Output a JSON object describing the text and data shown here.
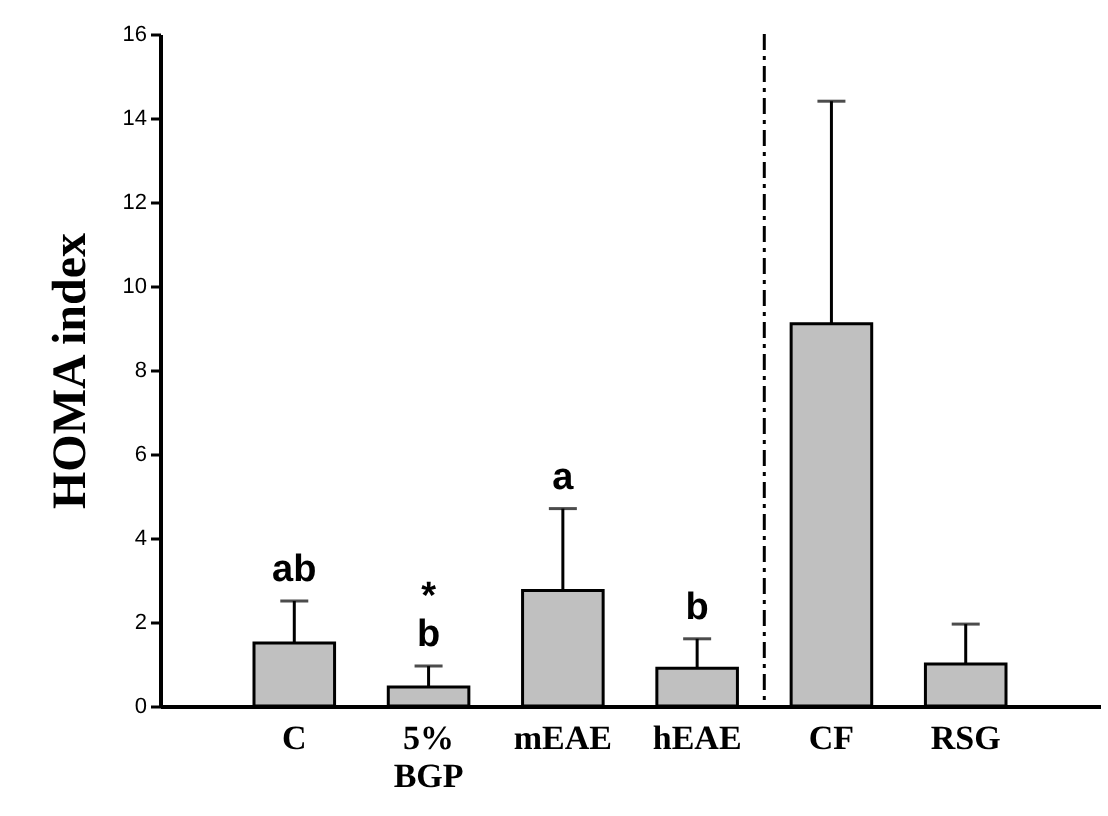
{
  "chart_data": {
    "type": "bar",
    "ylabel": "HOMA index",
    "categories": [
      "C",
      "5% BGP",
      "mEAE",
      "hEAE",
      "CF",
      "RSG"
    ],
    "values": [
      1.5,
      0.45,
      2.75,
      0.9,
      9.1,
      1.0
    ],
    "errors": [
      [
        1.5,
        2.5
      ],
      [
        0.45,
        0.95
      ],
      [
        2.75,
        4.7
      ],
      [
        0.9,
        1.6
      ],
      [
        9.1,
        14.4
      ],
      [
        1.0,
        1.95
      ]
    ],
    "color": "#c0c0c0",
    "ylim": [
      0,
      16
    ],
    "yticks": [
      0,
      2,
      4,
      6,
      8,
      10,
      12,
      14,
      16
    ],
    "grid": false,
    "annotations": [
      {
        "text": "ab",
        "x": "C",
        "y": 2.5
      },
      {
        "text": "b",
        "x": "5% BGP",
        "y": 0.95
      },
      {
        "text": "*",
        "x": "5% BGP",
        "y": 0.95
      },
      {
        "text": "a",
        "x": "mEAE",
        "y": 4.7
      },
      {
        "text": "b",
        "x": "hEAE",
        "y": 1.6
      }
    ]
  }
}
